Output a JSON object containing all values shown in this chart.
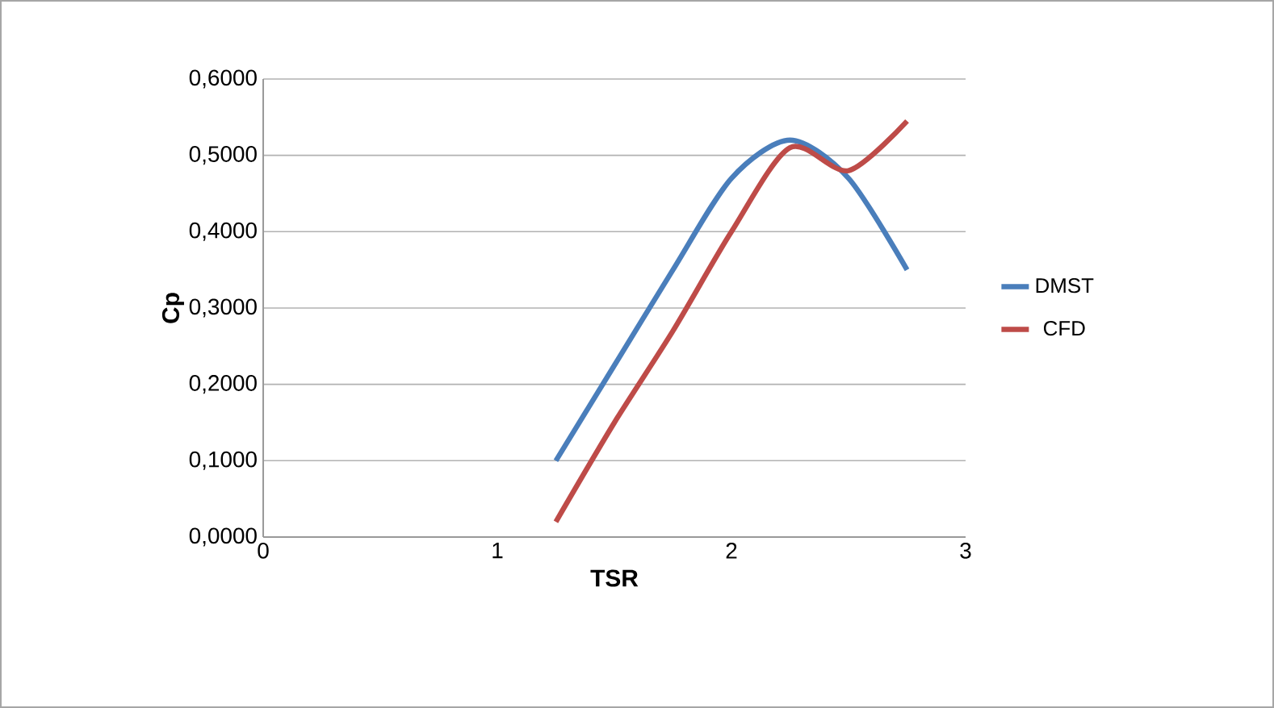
{
  "chart_data": {
    "type": "line",
    "xlabel": "TSR",
    "ylabel": "Cp",
    "x": [
      1.25,
      1.5,
      1.75,
      2,
      2.25,
      2.5,
      2.75
    ],
    "series": [
      {
        "name": "DMST",
        "color": "#4a7ebb",
        "values": [
          0.1,
          0.225,
          0.35,
          0.47,
          0.52,
          0.47,
          0.35
        ]
      },
      {
        "name": "CFD",
        "color": "#be4b48",
        "values": [
          0.02,
          0.15,
          0.27,
          0.4,
          0.51,
          0.48,
          0.545
        ]
      }
    ],
    "xlim": [
      0,
      3
    ],
    "xticks": [
      0,
      1,
      2,
      3
    ],
    "ylim": [
      0,
      0.6
    ],
    "yticks": [
      {
        "value": 0,
        "label": "0,0000"
      },
      {
        "value": 0.1,
        "label": "0,1000"
      },
      {
        "value": 0.2,
        "label": "0,2000"
      },
      {
        "value": 0.3,
        "label": "0,3000"
      },
      {
        "value": 0.4,
        "label": "0,4000"
      },
      {
        "value": 0.5,
        "label": "0,5000"
      },
      {
        "value": 0.6,
        "label": "0,6000"
      }
    ],
    "grid": "y",
    "legend": "right",
    "marker": "none",
    "line_style": "solid"
  }
}
